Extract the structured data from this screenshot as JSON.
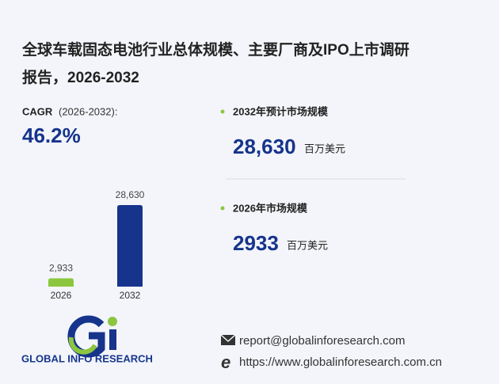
{
  "chart_data": {
    "type": "bar",
    "title": [
      "全球车载固态电池行业总体规模、主要厂商及IPO上市调研",
      "报告，2026-2032"
    ],
    "categories": [
      "2026",
      "2032"
    ],
    "values": [
      2933,
      28630
    ],
    "value_labels": [
      "2,933",
      "28,630"
    ],
    "colors": [
      "#8cc63f",
      "#16348c"
    ]
  },
  "cagr": {
    "label": "CAGR",
    "period": "(2026-2032):",
    "value": "46.2%"
  },
  "stats": [
    {
      "label": "2032年预计市场规模",
      "value": "28,630",
      "unit": "百万美元"
    },
    {
      "label": "2026年市场规模",
      "value": "2933",
      "unit": "百万美元"
    }
  ],
  "logo": {
    "text": "GLOBAL INFO RESEARCH"
  },
  "contact": {
    "email": "report@globalinforesearch.com",
    "url": "https://www.globalinforesearch.com.cn"
  }
}
